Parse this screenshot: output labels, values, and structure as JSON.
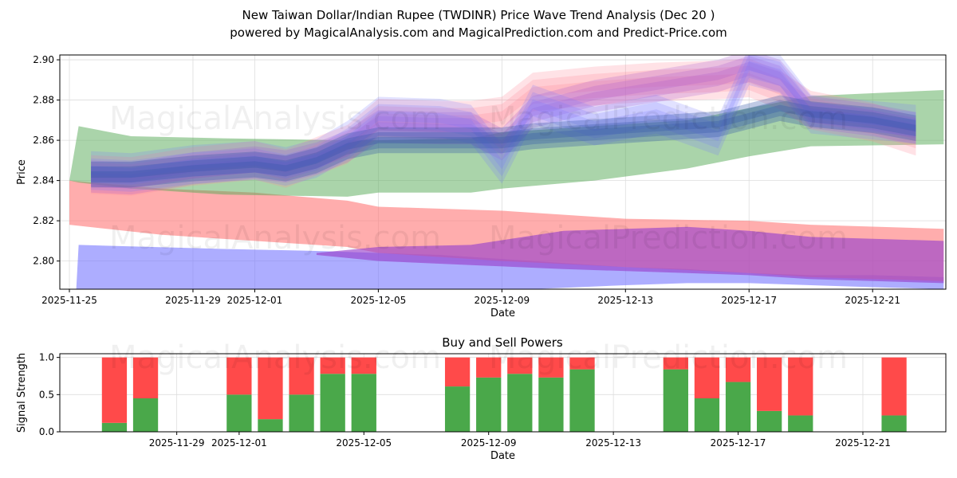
{
  "title_line1": "New Taiwan Dollar/Indian Rupee (TWDINR) Price Wave Trend Analysis (Dec 20 )",
  "title_line2": "powered by MagicalAnalysis.com and MagicalPrediction.com and Predict-Price.com",
  "watermark": [
    "MagicalAnalysis.com",
    "MagicalPrediction.com"
  ],
  "chart_data": [
    {
      "type": "area",
      "title": "",
      "xlabel": "Date",
      "ylabel": "Price",
      "x_origin": "2025-11-25",
      "x_unit": "days since 2025-11-25",
      "ylim": [
        2.786,
        2.9024
      ],
      "xlim": [
        -0.31,
        28.37
      ],
      "grid": true,
      "yticks": [
        "2.80",
        "2.82",
        "2.84",
        "2.86",
        "2.88",
        "2.90"
      ],
      "ytick_values": [
        2.8,
        2.82,
        2.84,
        2.86,
        2.88,
        2.9
      ],
      "xticks": [
        "2025-11-25",
        "2025-11-29",
        "2025-12-01",
        "2025-12-05",
        "2025-12-09",
        "2025-12-13",
        "2025-12-17",
        "2025-12-21"
      ],
      "xtick_days": [
        0,
        4,
        6,
        10,
        14,
        18,
        22,
        26
      ],
      "bands": [
        {
          "name": "blue-low",
          "color": "#7777ff",
          "opacity": 0.6,
          "days": [
            0.2,
            0.3,
            5,
            8,
            12,
            15,
            18,
            20,
            22,
            24,
            26,
            28.3
          ],
          "upper": [
            2.78,
            2.808,
            2.806,
            2.805,
            2.803,
            2.8,
            2.797,
            2.796,
            2.794,
            2.793,
            2.793,
            2.792
          ],
          "lower": [
            2.78,
            2.78,
            2.78,
            2.78,
            2.782,
            2.786,
            2.788,
            2.789,
            2.789,
            2.788,
            2.787,
            2.786
          ]
        },
        {
          "name": "red-low",
          "color": "#ff7777",
          "opacity": 0.6,
          "days": [
            0,
            3,
            6,
            9,
            10,
            14,
            18,
            22,
            24,
            28.3
          ],
          "upper": [
            2.84,
            2.836,
            2.834,
            2.83,
            2.827,
            2.825,
            2.821,
            2.82,
            2.818,
            2.816
          ],
          "lower": [
            2.818,
            2.813,
            2.81,
            2.807,
            2.804,
            2.8,
            2.797,
            2.794,
            2.792,
            2.79
          ]
        },
        {
          "name": "purple-low",
          "color": "#9944cc",
          "opacity": 0.65,
          "days": [
            8,
            10,
            13,
            16,
            20,
            22,
            24,
            28.3
          ],
          "upper": [
            2.804,
            2.807,
            2.808,
            2.815,
            2.817,
            2.815,
            2.812,
            2.81
          ],
          "lower": [
            2.803,
            2.8,
            2.798,
            2.796,
            2.794,
            2.793,
            2.791,
            2.789
          ]
        },
        {
          "name": "green",
          "color": "#55aa55",
          "opacity": 0.5,
          "days": [
            0,
            0.3,
            2,
            5,
            9,
            10,
            13,
            14,
            17,
            20,
            22,
            24,
            28.3
          ],
          "upper": [
            2.84,
            2.867,
            2.862,
            2.861,
            2.86,
            2.86,
            2.861,
            2.864,
            2.867,
            2.87,
            2.876,
            2.882,
            2.885
          ],
          "lower": [
            2.84,
            2.839,
            2.836,
            2.833,
            2.832,
            2.834,
            2.834,
            2.836,
            2.84,
            2.846,
            2.852,
            2.857,
            2.858
          ]
        }
      ],
      "waves": {
        "days": [
          0.7,
          2,
          4,
          6,
          7,
          8,
          9,
          10,
          12,
          13,
          14,
          15,
          17,
          19,
          21,
          22,
          23,
          24,
          26,
          27.4
        ],
        "series": [
          {
            "name": "pink-wave",
            "color": "#ff8899",
            "opacity": 0.35,
            "halfwidth": 0.006,
            "values": [
              2.843,
              2.842,
              2.847,
              2.85,
              2.846,
              2.852,
              2.858,
              2.871,
              2.87,
              2.87,
              2.872,
              2.884,
              2.887,
              2.889,
              2.89,
              2.891,
              2.885,
              2.875,
              2.869,
              2.862
            ]
          },
          {
            "name": "purple-wave",
            "color": "#aa55cc",
            "opacity": 0.35,
            "halfwidth": 0.005,
            "values": [
              2.842,
              2.841,
              2.846,
              2.849,
              2.847,
              2.851,
              2.857,
              2.867,
              2.866,
              2.866,
              2.858,
              2.874,
              2.882,
              2.887,
              2.892,
              2.897,
              2.892,
              2.874,
              2.87,
              2.866
            ]
          },
          {
            "name": "blue-wave",
            "color": "#7777ff",
            "opacity": 0.3,
            "halfwidth": 0.006,
            "values": [
              2.845,
              2.844,
              2.848,
              2.85,
              2.847,
              2.851,
              2.86,
              2.872,
              2.871,
              2.868,
              2.848,
              2.878,
              2.867,
              2.873,
              2.862,
              2.897,
              2.893,
              2.873,
              2.87,
              2.868
            ]
          },
          {
            "name": "steel-wave",
            "color": "#3355aa",
            "opacity": 0.45,
            "halfwidth": 0.004,
            "values": [
              2.843,
              2.843,
              2.846,
              2.848,
              2.846,
              2.85,
              2.857,
              2.86,
              2.86,
              2.86,
              2.86,
              2.862,
              2.864,
              2.866,
              2.868,
              2.872,
              2.876,
              2.873,
              2.87,
              2.866
            ]
          }
        ]
      }
    },
    {
      "type": "bar",
      "title": "Buy and Sell Powers",
      "xlabel": "Date",
      "ylabel": "Signal Strength",
      "ylim": [
        0,
        1.05
      ],
      "xlim": [
        0.25,
        28.66
      ],
      "yticks": [
        "0.0",
        "0.5",
        "1.0"
      ],
      "ytick_values": [
        0,
        0.5,
        1.0
      ],
      "xticks": [
        "2025-11-29",
        "2025-12-01",
        "2025-12-05",
        "2025-12-09",
        "2025-12-13",
        "2025-12-17",
        "2025-12-21"
      ],
      "xtick_days": [
        4,
        6,
        10,
        14,
        18,
        22,
        26
      ],
      "categories": [
        "2025-11-27",
        "2025-11-28",
        "2025-12-01",
        "2025-12-02",
        "2025-12-03",
        "2025-12-04",
        "2025-12-05",
        "2025-12-08",
        "2025-12-09",
        "2025-12-10",
        "2025-12-11",
        "2025-12-12",
        "2025-12-15",
        "2025-12-16",
        "2025-12-17",
        "2025-12-18",
        "2025-12-19",
        "2025-12-22"
      ],
      "bar_days": [
        2,
        3,
        6,
        7,
        8,
        9,
        10,
        13,
        14,
        15,
        16,
        17,
        20,
        21,
        22,
        23,
        24,
        27
      ],
      "series": [
        {
          "name": "Buy",
          "color": "#4aa84a",
          "values": [
            0.12,
            0.45,
            0.5,
            0.17,
            0.5,
            0.78,
            0.78,
            0.61,
            0.73,
            0.78,
            0.73,
            0.84,
            0.84,
            0.45,
            0.67,
            0.28,
            0.22,
            0.22
          ]
        },
        {
          "name": "Sell",
          "color": "#ff4a4a",
          "values": [
            0.88,
            0.55,
            0.5,
            0.83,
            0.5,
            0.22,
            0.22,
            0.39,
            0.27,
            0.22,
            0.27,
            0.16,
            0.16,
            0.55,
            0.33,
            0.72,
            0.78,
            0.78
          ]
        }
      ]
    }
  ]
}
